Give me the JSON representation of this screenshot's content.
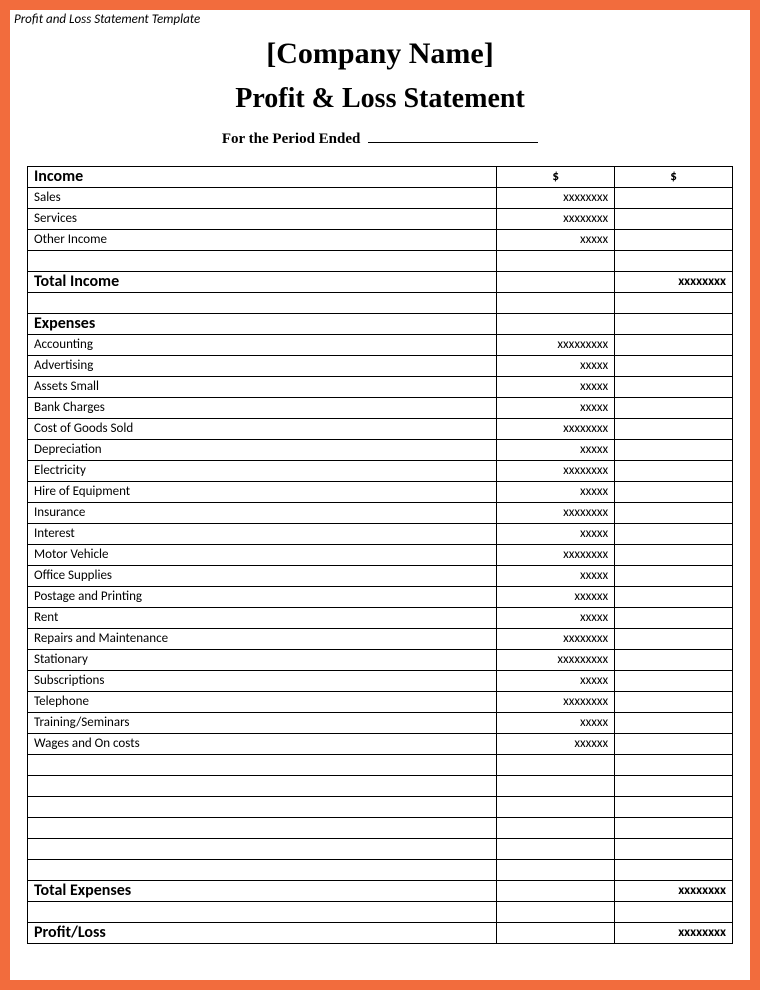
{
  "frame": {
    "border_color": "#f26c3d",
    "background": "#ffffff"
  },
  "template_label": "Profit and Loss Statement Template",
  "header": {
    "company": "[Company Name]",
    "title": "Profit & Loss Statement",
    "period_prefix": "For the Period Ended"
  },
  "columns": {
    "label": "",
    "amt1": "$",
    "amt2": "$"
  },
  "income": {
    "section": "Income",
    "rows": [
      {
        "label": "Sales",
        "amt1": "xxxxxxxx",
        "amt2": ""
      },
      {
        "label": "Services",
        "amt1": "xxxxxxxx",
        "amt2": ""
      },
      {
        "label": "Other Income",
        "amt1": "xxxxx",
        "amt2": ""
      },
      {
        "label": "",
        "amt1": "",
        "amt2": ""
      }
    ],
    "total": {
      "label": "Total Income",
      "amt1": "",
      "amt2": "xxxxxxxx"
    }
  },
  "expenses": {
    "section": "Expenses",
    "rows": [
      {
        "label": "Accounting",
        "amt1": "xxxxxxxxx",
        "amt2": ""
      },
      {
        "label": "Advertising",
        "amt1": "xxxxx",
        "amt2": ""
      },
      {
        "label": "Assets Small",
        "amt1": "xxxxx",
        "amt2": ""
      },
      {
        "label": "Bank Charges",
        "amt1": "xxxxx",
        "amt2": ""
      },
      {
        "label": "Cost of Goods Sold",
        "amt1": "xxxxxxxx",
        "amt2": ""
      },
      {
        "label": "Depreciation",
        "amt1": "xxxxx",
        "amt2": ""
      },
      {
        "label": "Electricity",
        "amt1": "xxxxxxxx",
        "amt2": ""
      },
      {
        "label": "Hire of Equipment",
        "amt1": "xxxxx",
        "amt2": ""
      },
      {
        "label": "Insurance",
        "amt1": "xxxxxxxx",
        "amt2": ""
      },
      {
        "label": "Interest",
        "amt1": "xxxxx",
        "amt2": ""
      },
      {
        "label": "Motor Vehicle",
        "amt1": "xxxxxxxx",
        "amt2": ""
      },
      {
        "label": "Office Supplies",
        "amt1": "xxxxx",
        "amt2": ""
      },
      {
        "label": "Postage and Printing",
        "amt1": "xxxxxx",
        "amt2": ""
      },
      {
        "label": "Rent",
        "amt1": "xxxxx",
        "amt2": ""
      },
      {
        "label": "Repairs and Maintenance",
        "amt1": "xxxxxxxx",
        "amt2": ""
      },
      {
        "label": "Stationary",
        "amt1": "xxxxxxxxx",
        "amt2": ""
      },
      {
        "label": "Subscriptions",
        "amt1": "xxxxx",
        "amt2": ""
      },
      {
        "label": "Telephone",
        "amt1": "xxxxxxxx",
        "amt2": ""
      },
      {
        "label": "Training/Seminars",
        "amt1": "xxxxx",
        "amt2": ""
      },
      {
        "label": "Wages and On costs",
        "amt1": "xxxxxx",
        "amt2": ""
      },
      {
        "label": "",
        "amt1": "",
        "amt2": ""
      },
      {
        "label": "",
        "amt1": "",
        "amt2": ""
      },
      {
        "label": "",
        "amt1": "",
        "amt2": ""
      },
      {
        "label": "",
        "amt1": "",
        "amt2": ""
      },
      {
        "label": "",
        "amt1": "",
        "amt2": ""
      },
      {
        "label": "",
        "amt1": "",
        "amt2": ""
      }
    ],
    "total": {
      "label": "Total Expenses",
      "amt1": "",
      "amt2": "xxxxxxxx"
    }
  },
  "profit_loss": {
    "label": "Profit/Loss",
    "amt1": "",
    "amt2": "xxxxxxxx"
  }
}
